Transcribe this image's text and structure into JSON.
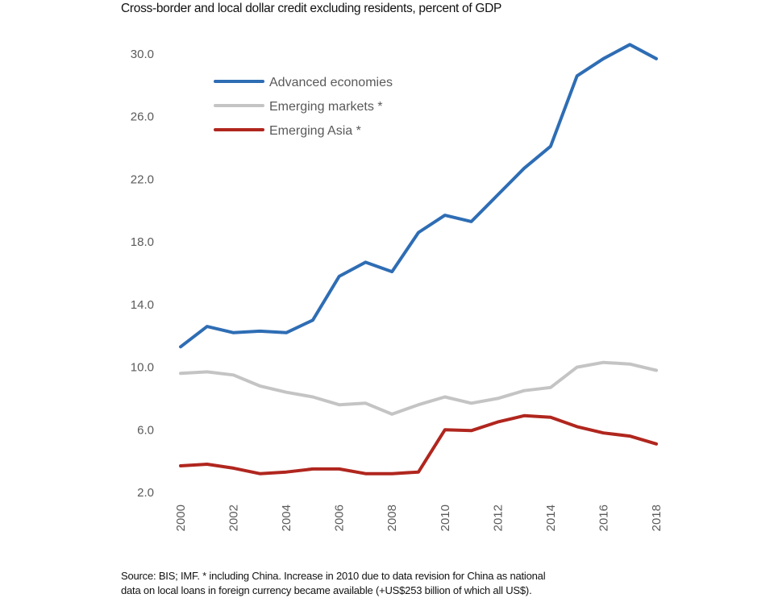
{
  "chart_data": {
    "type": "line",
    "title": "Cross-border and local dollar credit excluding residents, percent of GDP",
    "xlabel": "",
    "ylabel": "",
    "x": [
      2000,
      2001,
      2002,
      2003,
      2004,
      2005,
      2006,
      2007,
      2008,
      2009,
      2010,
      2011,
      2012,
      2013,
      2014,
      2015,
      2016,
      2017,
      2018
    ],
    "x_tick_labels": [
      "2000",
      "2002",
      "2004",
      "2006",
      "2008",
      "2010",
      "2012",
      "2014",
      "2016",
      "2018"
    ],
    "y_tick_labels": [
      "30.0",
      "26.0",
      "22.0",
      "18.0",
      "14.0",
      "10.0",
      "6.0",
      "2.0"
    ],
    "ylim": [
      2.0,
      30.0
    ],
    "grid": false,
    "legend_position": "top-left",
    "series": [
      {
        "name": "Advanced economies",
        "color": "#2e6db4",
        "values": [
          11.3,
          12.6,
          12.2,
          12.3,
          12.2,
          13.0,
          15.8,
          16.7,
          16.1,
          18.6,
          19.7,
          19.3,
          21.0,
          22.7,
          24.1,
          28.6,
          29.7,
          30.6,
          29.7
        ]
      },
      {
        "name": "Emerging markets *",
        "color": "#c4c4c4",
        "values": [
          9.6,
          9.7,
          9.5,
          8.8,
          8.4,
          8.1,
          7.6,
          7.7,
          7.0,
          7.6,
          8.1,
          7.7,
          8.0,
          8.5,
          8.7,
          10.0,
          10.3,
          10.2,
          9.8
        ]
      },
      {
        "name": "Emerging Asia *",
        "color": "#b0261e",
        "values": [
          3.7,
          3.8,
          3.55,
          3.2,
          3.3,
          3.5,
          3.5,
          3.2,
          3.2,
          3.3,
          6.0,
          5.95,
          6.5,
          6.9,
          6.8,
          6.2,
          5.8,
          5.6,
          5.1
        ]
      }
    ],
    "annotations": [
      "Source: BIS; IMF. * including China. Increase in 2010 due to data revision for China as national",
      "data on local loans in foreign currency became available (+US$253 billion of which all US$)."
    ]
  }
}
